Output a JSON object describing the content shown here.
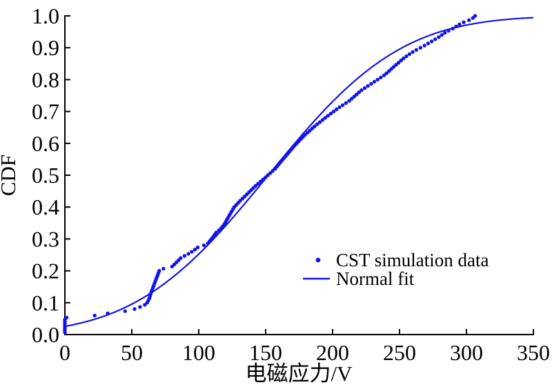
{
  "figure": {
    "background": "#ffffff"
  },
  "colors": {
    "series_blue": "#1212ee",
    "axis_black": "#000000"
  },
  "chart_data": {
    "type": "scatter",
    "title": "",
    "xlabel": "电磁应力/V",
    "ylabel": "CDF",
    "xlim": [
      0,
      350
    ],
    "ylim": [
      0.0,
      1.0
    ],
    "xticks": [
      "0",
      "50",
      "100",
      "150",
      "200",
      "250",
      "300",
      "350"
    ],
    "yticks": [
      "0.0",
      "0.1",
      "0.2",
      "0.3",
      "0.4",
      "0.5",
      "0.6",
      "0.7",
      "0.8",
      "0.9",
      "1.0"
    ],
    "grid": false,
    "legend": {
      "position": "inside-middle-right",
      "border": false
    },
    "series": [
      {
        "name": "CST simulation data",
        "type": "scatter",
        "marker": "dot",
        "color": "#1212ee",
        "n_samples": 150,
        "note": "empirical CDF of simulated electromagnetic stress; anchor pairs [stress_V, CDF] read from the plotted staircase of dots",
        "ecdf_points_v_cdf": [
          [
            0,
            0.007
          ],
          [
            0,
            0.053
          ],
          [
            19,
            0.058
          ],
          [
            28,
            0.0635
          ],
          [
            35,
            0.069
          ],
          [
            50,
            0.0755
          ],
          [
            53,
            0.082
          ],
          [
            57,
            0.088
          ],
          [
            60,
            0.094
          ],
          [
            61.5,
            0.1
          ],
          [
            63,
            0.112
          ],
          [
            64.5,
            0.133
          ],
          [
            70.5,
            0.2
          ],
          [
            73,
            0.206
          ],
          [
            80,
            0.213
          ],
          [
            83,
            0.225
          ],
          [
            86.5,
            0.24
          ],
          [
            93,
            0.255
          ],
          [
            97,
            0.266
          ],
          [
            99,
            0.273
          ],
          [
            103,
            0.278
          ],
          [
            107,
            0.287
          ],
          [
            109.5,
            0.3
          ],
          [
            111,
            0.308
          ],
          [
            113,
            0.32
          ],
          [
            116,
            0.33
          ],
          [
            119,
            0.345
          ],
          [
            121,
            0.36
          ],
          [
            123,
            0.375
          ],
          [
            126.5,
            0.4
          ],
          [
            131,
            0.42
          ],
          [
            136,
            0.44
          ],
          [
            142,
            0.465
          ],
          [
            149,
            0.49
          ],
          [
            157,
            0.52
          ],
          [
            164,
            0.555
          ],
          [
            171,
            0.59
          ],
          [
            179,
            0.625
          ],
          [
            187,
            0.655
          ],
          [
            196,
            0.685
          ],
          [
            204,
            0.71
          ],
          [
            213,
            0.735
          ],
          [
            221,
            0.765
          ],
          [
            230,
            0.79
          ],
          [
            239,
            0.815
          ],
          [
            247,
            0.845
          ],
          [
            254,
            0.87
          ],
          [
            261,
            0.89
          ],
          [
            268,
            0.905
          ],
          [
            274,
            0.92
          ],
          [
            280,
            0.935
          ],
          [
            285,
            0.95
          ],
          [
            289,
            0.958
          ],
          [
            292,
            0.966
          ],
          [
            295,
            0.974
          ],
          [
            299,
            0.982
          ],
          [
            304,
            0.99
          ],
          [
            306.5,
            1.0
          ]
        ]
      },
      {
        "name": "Normal fit",
        "type": "line",
        "color": "#1212ee",
        "distribution": "normal",
        "mu": 152,
        "sigma": 78
      }
    ]
  }
}
